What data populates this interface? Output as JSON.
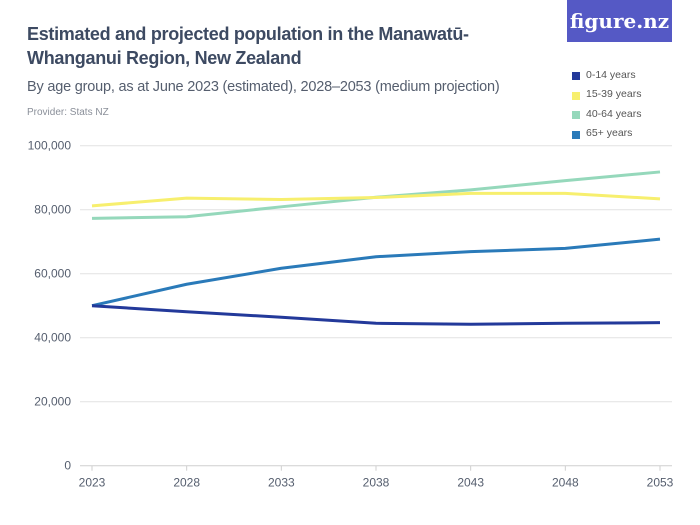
{
  "header": {
    "title": "Estimated and projected population in the Manawatū-Whanganui Region, New Zealand",
    "subtitle": "By age group, as at June 2023 (estimated), 2028–2053 (medium projection)",
    "provider": "Provider: Stats NZ",
    "logo": "figure.nz"
  },
  "chart_data": {
    "type": "line",
    "title": "Estimated and projected population in the Manawatū-Whanganui Region, New Zealand",
    "subtitle": "By age group, as at June 2023 (estimated), 2028–2053 (medium projection)",
    "xlabel": "",
    "ylabel": "",
    "x": [
      "2023",
      "2028",
      "2033",
      "2038",
      "2043",
      "2048",
      "2053"
    ],
    "ylim": [
      0,
      100000
    ],
    "yticks": [
      "0",
      "20,000",
      "40,000",
      "60,000",
      "80,000",
      "100,000"
    ],
    "yticks_values": [
      0,
      20000,
      40000,
      60000,
      80000,
      100000
    ],
    "grid": true,
    "legend": "top-right",
    "series": [
      {
        "name": "0-14 years",
        "color": "#23399a",
        "values": [
          50000,
          48100,
          46400,
          44500,
          44200,
          44500,
          44700
        ]
      },
      {
        "name": "15-39 years",
        "color": "#f7ef6e",
        "values": [
          81200,
          83600,
          83200,
          83800,
          85100,
          85100,
          83400
        ]
      },
      {
        "name": "40-64 years",
        "color": "#95d8bb",
        "values": [
          77300,
          77800,
          80900,
          83900,
          86200,
          89100,
          91800
        ]
      },
      {
        "name": "65+ years",
        "color": "#2a7ab9",
        "values": [
          50000,
          56700,
          61700,
          65300,
          66900,
          67900,
          70800
        ]
      }
    ]
  }
}
